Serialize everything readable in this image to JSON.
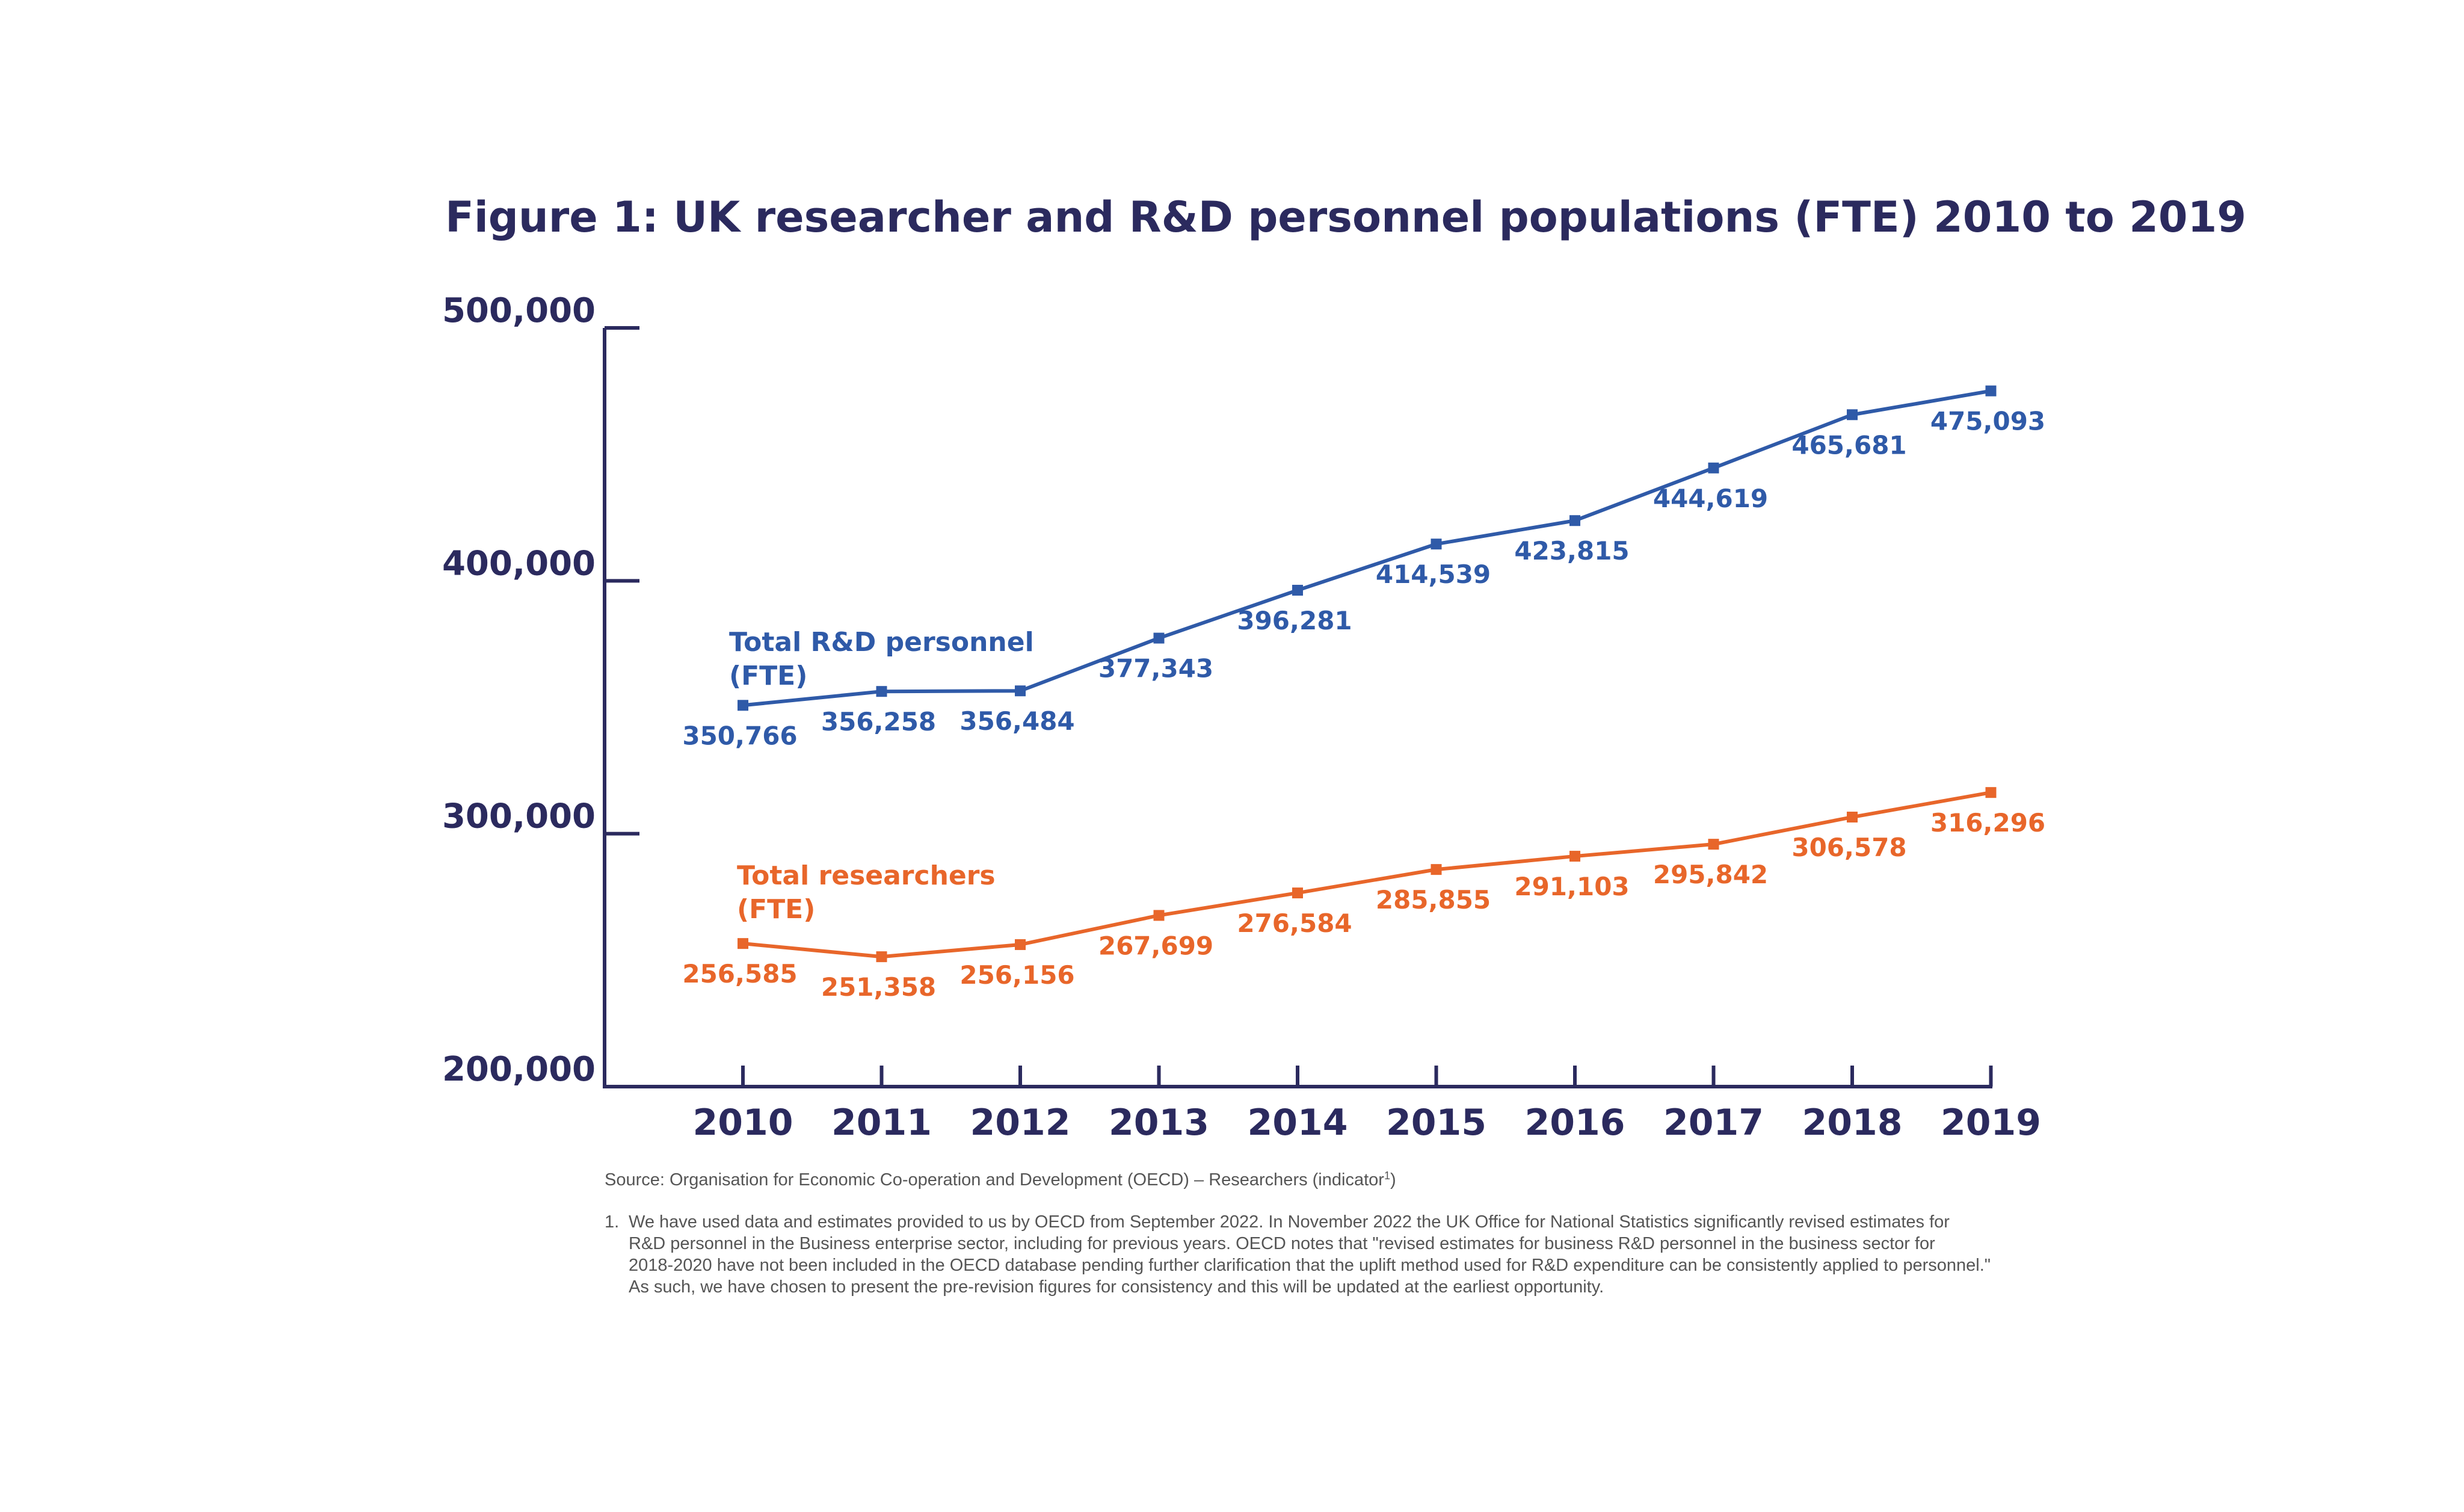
{
  "chart_data": {
    "type": "line",
    "title": "Figure 1: UK researcher and R&D personnel populations (FTE) 2010 to 2019",
    "categories": [
      "2010",
      "2011",
      "2012",
      "2013",
      "2014",
      "2015",
      "2016",
      "2017",
      "2018",
      "2019"
    ],
    "ylim": [
      200000,
      500000
    ],
    "yticks": [
      200000,
      300000,
      400000,
      500000
    ],
    "ytick_labels": [
      "200,000",
      "300,000",
      "400,000",
      "500,000"
    ],
    "series": [
      {
        "name": "Total R&D personnel",
        "label_lines": [
          "Total R&D personnel",
          "(FTE)"
        ],
        "color": "#2f5aa8",
        "values": [
          350766,
          356258,
          356484,
          377343,
          396281,
          414539,
          423815,
          444619,
          465681,
          475093
        ],
        "value_labels": [
          "350,766",
          "356,258",
          "356,484",
          "377,343",
          "396,281",
          "414,539",
          "423,815",
          "444,619",
          "465,681",
          "475,093"
        ]
      },
      {
        "name": "Total researchers",
        "label_lines": [
          "Total researchers",
          "(FTE)"
        ],
        "color": "#e8662a",
        "values": [
          256585,
          251358,
          256156,
          267699,
          276584,
          285855,
          291103,
          295842,
          306578,
          316296
        ],
        "value_labels": [
          "256,585",
          "251,358",
          "256,156",
          "267,699",
          "276,584",
          "285,855",
          "291,103",
          "295,842",
          "306,578",
          "316,296"
        ]
      }
    ],
    "axis_color": "#2b2a5e",
    "source_prefix": "Source: Organisation for Economic Co-operation and Development (OECD) – Researchers (indicator",
    "source_sup": "1",
    "source_suffix": ")",
    "footnote_marker": "1.",
    "footnote_lines": [
      "We have used data and estimates provided to us by OECD from September 2022. In November 2022 the UK Office for National Statistics significantly revised estimates for",
      "R&D personnel in the Business enterprise sector, including for previous years. OECD notes that \"revised estimates for business R&D personnel in the business sector for",
      "2018-2020 have not been included in the OECD database pending further clarification that the uplift method used for R&D expenditure can be consistently applied to personnel.\"",
      "As such, we have chosen to present the pre-revision figures for consistency and this will be updated at the earliest opportunity."
    ]
  }
}
